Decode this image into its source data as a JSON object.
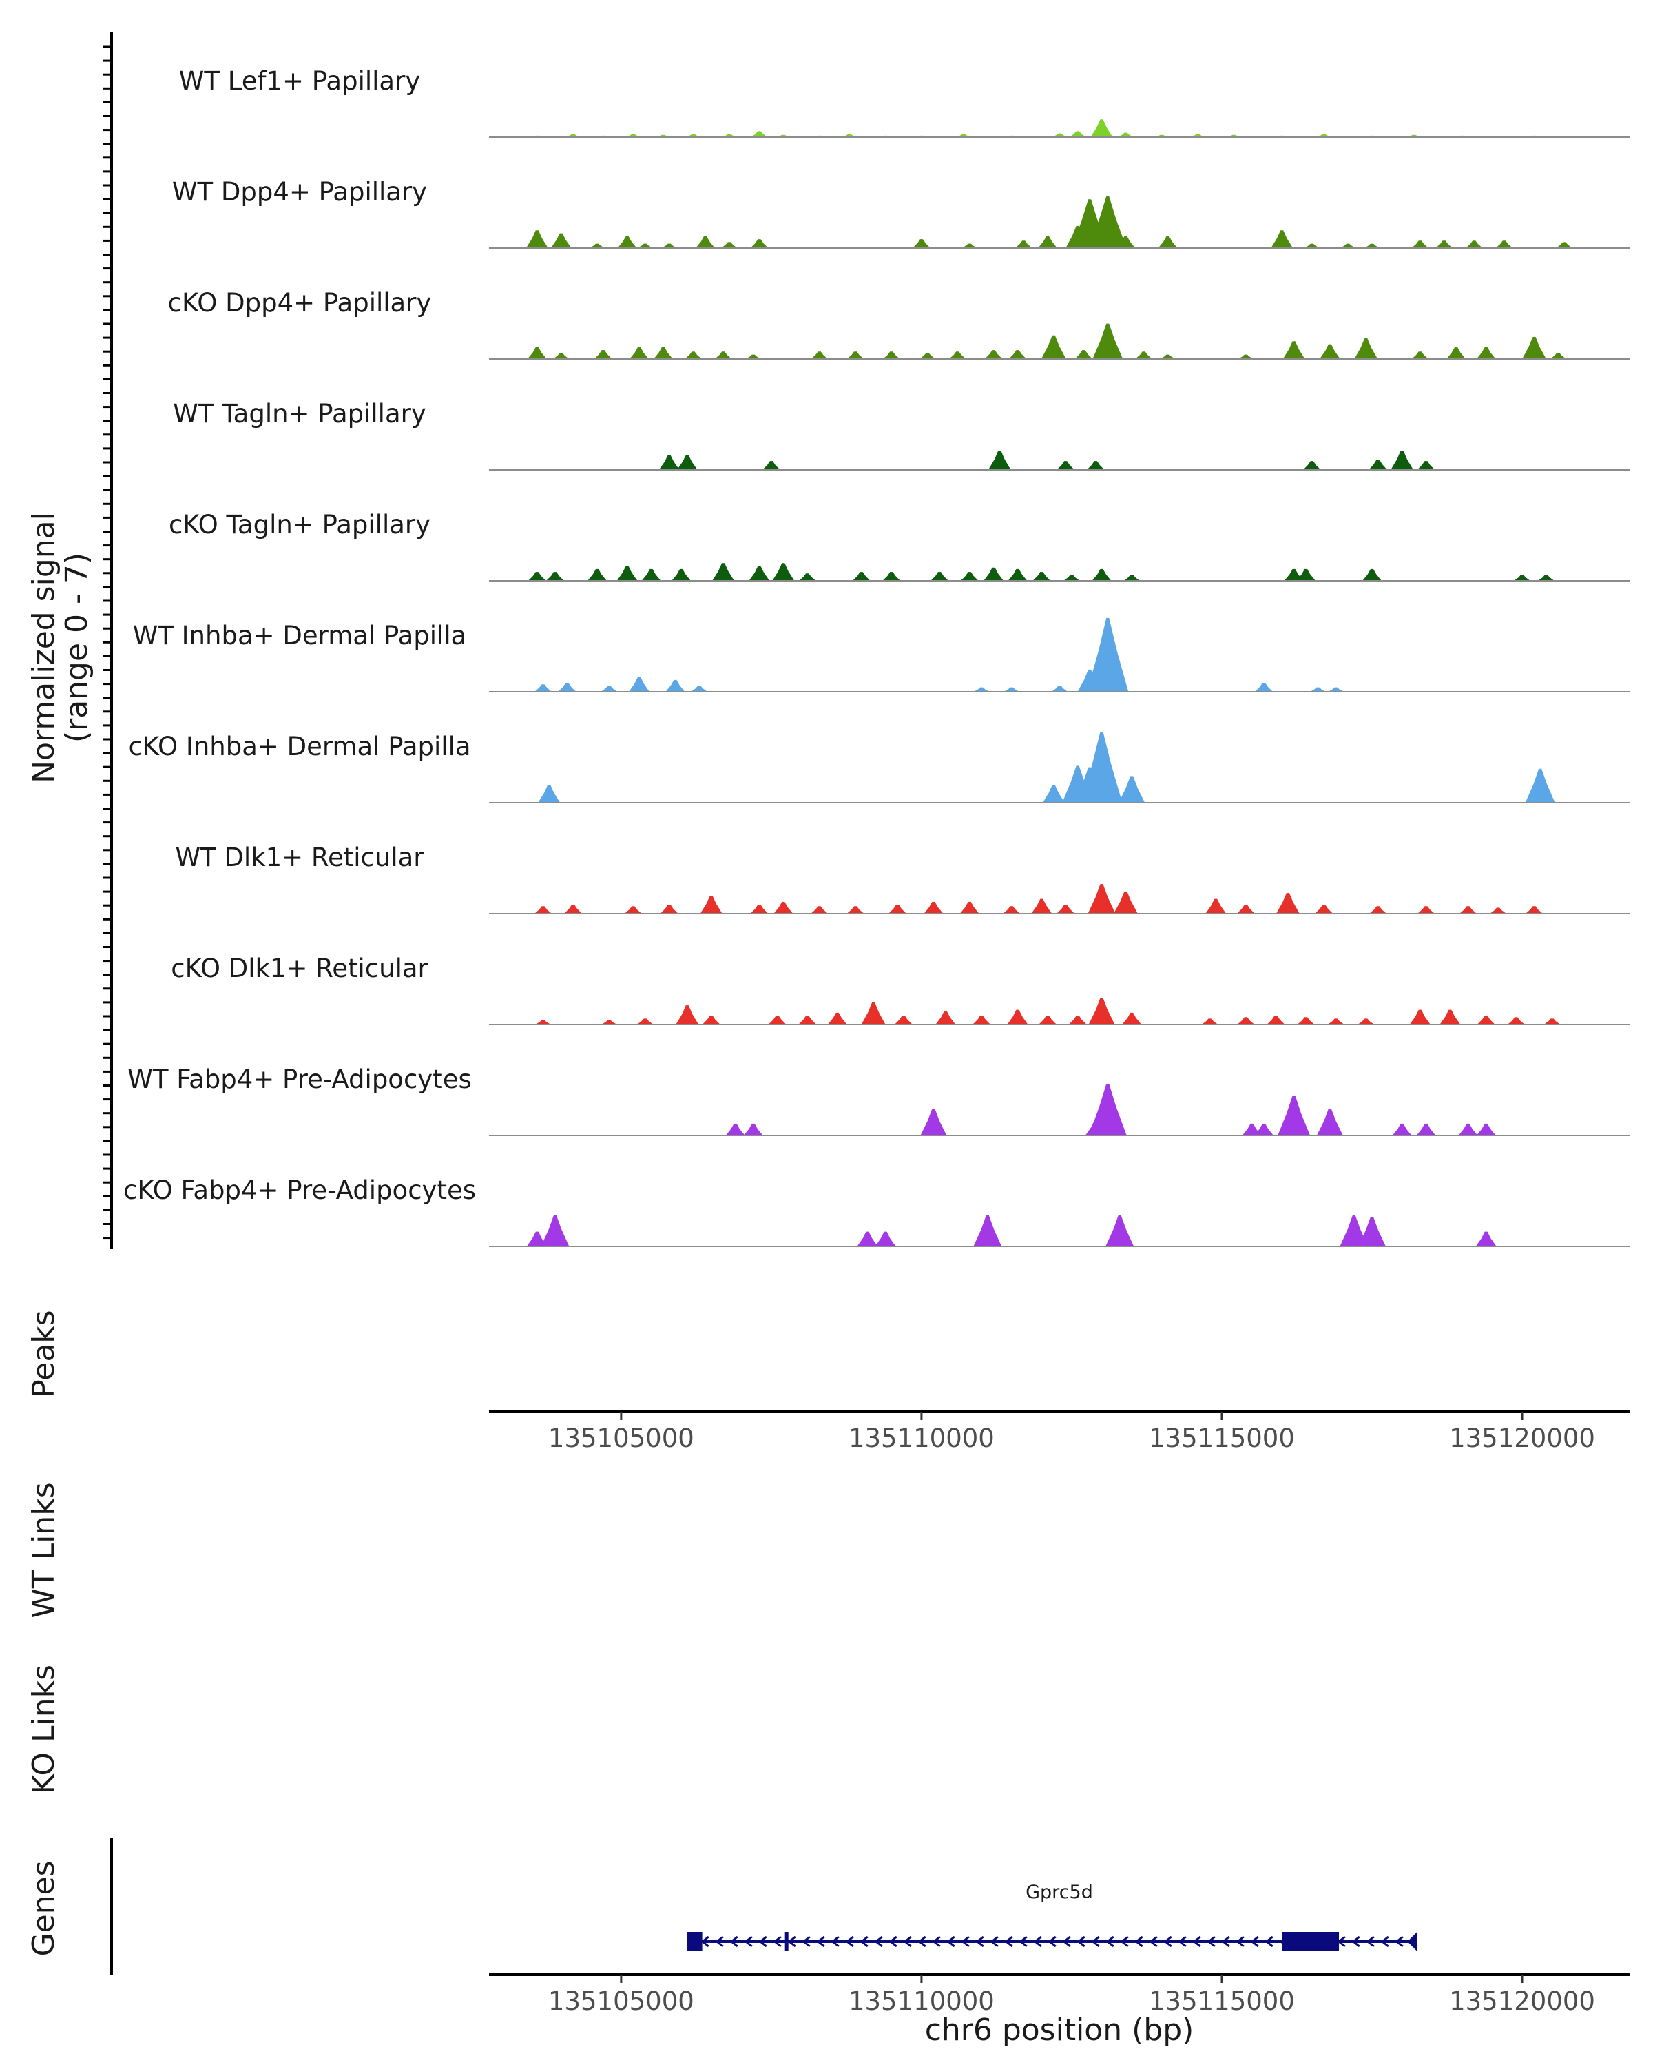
{
  "chart_data": {
    "type": "area",
    "title": "",
    "chromosome": "chr6",
    "xlabel": "chr6 position (bp)",
    "xlim": [
      135102800,
      135121800
    ],
    "xticks": [
      135105000,
      135110000,
      135115000,
      135120000
    ],
    "xtick_labels": [
      "135105000",
      "135110000",
      "135115000",
      "135120000"
    ],
    "ylabel": "Normalized signal",
    "ylabel_range": "(range 0 - 7)",
    "ylim": [
      0,
      7
    ],
    "series": [
      {
        "name": "WT Lef1+ Papillary",
        "color": "#7CD12A",
        "peaks": [
          [
            135103600,
            0.1
          ],
          [
            135104200,
            0.2
          ],
          [
            135104700,
            0.1
          ],
          [
            135105200,
            0.2
          ],
          [
            135105700,
            0.15
          ],
          [
            135106200,
            0.2
          ],
          [
            135106800,
            0.2
          ],
          [
            135107300,
            0.4
          ],
          [
            135107700,
            0.15
          ],
          [
            135108300,
            0.1
          ],
          [
            135108800,
            0.2
          ],
          [
            135109400,
            0.1
          ],
          [
            135110000,
            0.1
          ],
          [
            135110700,
            0.2
          ],
          [
            135111500,
            0.1
          ],
          [
            135112300,
            0.25
          ],
          [
            135112600,
            0.4
          ],
          [
            135113000,
            1.2
          ],
          [
            135113400,
            0.3
          ],
          [
            135114000,
            0.15
          ],
          [
            135114600,
            0.2
          ],
          [
            135115200,
            0.15
          ],
          [
            135116000,
            0.1
          ],
          [
            135116700,
            0.2
          ],
          [
            135117500,
            0.1
          ],
          [
            135118200,
            0.15
          ],
          [
            135119000,
            0.1
          ],
          [
            135120200,
            0.1
          ]
        ]
      },
      {
        "name": "WT Dpp4+ Papillary",
        "color": "#4E8A0C",
        "peaks": [
          [
            135103600,
            1.2
          ],
          [
            135104000,
            1.0
          ],
          [
            135104600,
            0.3
          ],
          [
            135105100,
            0.8
          ],
          [
            135105400,
            0.3
          ],
          [
            135105800,
            0.3
          ],
          [
            135106400,
            0.8
          ],
          [
            135106800,
            0.4
          ],
          [
            135107300,
            0.6
          ],
          [
            135110000,
            0.6
          ],
          [
            135110800,
            0.3
          ],
          [
            135111700,
            0.5
          ],
          [
            135112100,
            0.8
          ],
          [
            135112600,
            1.5
          ],
          [
            135112800,
            3.3
          ],
          [
            135113100,
            3.5
          ],
          [
            135113400,
            0.8
          ],
          [
            135114100,
            0.8
          ],
          [
            135116000,
            1.2
          ],
          [
            135116500,
            0.3
          ],
          [
            135117100,
            0.3
          ],
          [
            135117500,
            0.3
          ],
          [
            135118300,
            0.5
          ],
          [
            135118700,
            0.5
          ],
          [
            135119200,
            0.5
          ],
          [
            135119700,
            0.5
          ],
          [
            135120700,
            0.4
          ]
        ]
      },
      {
        "name": "cKO Dpp4+ Papillary",
        "color": "#4E8A0C",
        "peaks": [
          [
            135103600,
            0.8
          ],
          [
            135104000,
            0.4
          ],
          [
            135104700,
            0.6
          ],
          [
            135105300,
            0.8
          ],
          [
            135105700,
            0.8
          ],
          [
            135106200,
            0.5
          ],
          [
            135106700,
            0.5
          ],
          [
            135107200,
            0.3
          ],
          [
            135108300,
            0.5
          ],
          [
            135108900,
            0.5
          ],
          [
            135109500,
            0.5
          ],
          [
            135110100,
            0.4
          ],
          [
            135110600,
            0.5
          ],
          [
            135111200,
            0.6
          ],
          [
            135111600,
            0.6
          ],
          [
            135112200,
            1.6
          ],
          [
            135112700,
            0.6
          ],
          [
            135113100,
            2.4
          ],
          [
            135113700,
            0.5
          ],
          [
            135114100,
            0.3
          ],
          [
            135115400,
            0.3
          ],
          [
            135116200,
            1.2
          ],
          [
            135116800,
            1.0
          ],
          [
            135117400,
            1.4
          ],
          [
            135118300,
            0.5
          ],
          [
            135118900,
            0.8
          ],
          [
            135119400,
            0.8
          ],
          [
            135120200,
            1.5
          ],
          [
            135120600,
            0.4
          ]
        ]
      },
      {
        "name": "WT Tagln+ Papillary",
        "color": "#0E5C0E",
        "peaks": [
          [
            135105800,
            1.0
          ],
          [
            135106100,
            1.0
          ],
          [
            135107500,
            0.6
          ],
          [
            135111300,
            1.3
          ],
          [
            135112400,
            0.6
          ],
          [
            135112900,
            0.6
          ],
          [
            135116500,
            0.6
          ],
          [
            135117600,
            0.7
          ],
          [
            135118000,
            1.3
          ],
          [
            135118400,
            0.6
          ]
        ]
      },
      {
        "name": "cKO Tagln+ Papillary",
        "color": "#0E5C0E",
        "peaks": [
          [
            135103600,
            0.6
          ],
          [
            135103900,
            0.6
          ],
          [
            135104600,
            0.8
          ],
          [
            135105100,
            1.0
          ],
          [
            135105500,
            0.8
          ],
          [
            135106000,
            0.8
          ],
          [
            135106700,
            1.2
          ],
          [
            135107300,
            1.0
          ],
          [
            135107700,
            1.2
          ],
          [
            135108100,
            0.5
          ],
          [
            135109000,
            0.6
          ],
          [
            135109500,
            0.6
          ],
          [
            135110300,
            0.6
          ],
          [
            135110800,
            0.6
          ],
          [
            135111200,
            0.9
          ],
          [
            135111600,
            0.8
          ],
          [
            135112000,
            0.6
          ],
          [
            135112500,
            0.4
          ],
          [
            135113000,
            0.8
          ],
          [
            135113500,
            0.4
          ],
          [
            135116200,
            0.8
          ],
          [
            135116400,
            0.8
          ],
          [
            135117500,
            0.8
          ],
          [
            135120000,
            0.4
          ],
          [
            135120400,
            0.4
          ]
        ]
      },
      {
        "name": "WT Inhba+ Dermal Papilla",
        "color": "#5AA6E6",
        "peaks": [
          [
            135103700,
            0.5
          ],
          [
            135104100,
            0.6
          ],
          [
            135104800,
            0.4
          ],
          [
            135105300,
            1.0
          ],
          [
            135105900,
            0.8
          ],
          [
            135106300,
            0.4
          ],
          [
            135111000,
            0.3
          ],
          [
            135111500,
            0.3
          ],
          [
            135112300,
            0.4
          ],
          [
            135112800,
            1.5
          ],
          [
            135113100,
            5.0
          ],
          [
            135113300,
            0.6
          ],
          [
            135115700,
            0.6
          ],
          [
            135116600,
            0.3
          ],
          [
            135116900,
            0.3
          ]
        ]
      },
      {
        "name": "cKO Inhba+ Dermal Papilla",
        "color": "#5AA6E6",
        "peaks": [
          [
            135103800,
            1.2
          ],
          [
            135112200,
            1.2
          ],
          [
            135112600,
            2.5
          ],
          [
            135112800,
            2.4
          ],
          [
            135113000,
            4.8
          ],
          [
            135113200,
            1.0
          ],
          [
            135113500,
            1.8
          ],
          [
            135120300,
            2.3
          ]
        ]
      },
      {
        "name": "WT Dlk1+ Reticular",
        "color": "#E8302B",
        "peaks": [
          [
            135103700,
            0.5
          ],
          [
            135104200,
            0.6
          ],
          [
            135105200,
            0.5
          ],
          [
            135105800,
            0.6
          ],
          [
            135106500,
            1.2
          ],
          [
            135107300,
            0.6
          ],
          [
            135107700,
            0.8
          ],
          [
            135108300,
            0.5
          ],
          [
            135108900,
            0.5
          ],
          [
            135109600,
            0.6
          ],
          [
            135110200,
            0.8
          ],
          [
            135110800,
            0.8
          ],
          [
            135111500,
            0.5
          ],
          [
            135112000,
            1.0
          ],
          [
            135112400,
            0.6
          ],
          [
            135113000,
            2.0
          ],
          [
            135113400,
            1.5
          ],
          [
            135114900,
            1.0
          ],
          [
            135115400,
            0.6
          ],
          [
            135116100,
            1.4
          ],
          [
            135116700,
            0.6
          ],
          [
            135117600,
            0.5
          ],
          [
            135118400,
            0.5
          ],
          [
            135119100,
            0.5
          ],
          [
            135119600,
            0.4
          ],
          [
            135120200,
            0.5
          ]
        ]
      },
      {
        "name": "cKO Dlk1+ Reticular",
        "color": "#E8302B",
        "peaks": [
          [
            135103700,
            0.3
          ],
          [
            135104800,
            0.3
          ],
          [
            135105400,
            0.4
          ],
          [
            135106100,
            1.3
          ],
          [
            135106500,
            0.6
          ],
          [
            135107600,
            0.6
          ],
          [
            135108100,
            0.6
          ],
          [
            135108600,
            0.8
          ],
          [
            135109200,
            1.5
          ],
          [
            135109700,
            0.6
          ],
          [
            135110400,
            0.9
          ],
          [
            135111000,
            0.6
          ],
          [
            135111600,
            1.0
          ],
          [
            135112100,
            0.6
          ],
          [
            135112600,
            0.6
          ],
          [
            135113000,
            1.8
          ],
          [
            135113500,
            0.8
          ],
          [
            135114800,
            0.4
          ],
          [
            135115400,
            0.5
          ],
          [
            135115900,
            0.6
          ],
          [
            135116400,
            0.5
          ],
          [
            135116900,
            0.4
          ],
          [
            135117400,
            0.4
          ],
          [
            135118300,
            1.0
          ],
          [
            135118800,
            1.0
          ],
          [
            135119400,
            0.6
          ],
          [
            135119900,
            0.5
          ],
          [
            135120500,
            0.4
          ]
        ]
      },
      {
        "name": "WT Fabp4+ Pre-Adipocytes",
        "color": "#A338E6",
        "peaks": [
          [
            135106900,
            0.8
          ],
          [
            135107200,
            0.8
          ],
          [
            135110200,
            1.8
          ],
          [
            135112900,
            1.0
          ],
          [
            135113100,
            3.5
          ],
          [
            135115500,
            0.8
          ],
          [
            135115700,
            0.8
          ],
          [
            135116200,
            2.7
          ],
          [
            135116800,
            1.8
          ],
          [
            135118000,
            0.8
          ],
          [
            135118400,
            0.8
          ],
          [
            135119100,
            0.8
          ],
          [
            135119400,
            0.8
          ]
        ]
      },
      {
        "name": "cKO Fabp4+ Pre-Adipocytes",
        "color": "#A338E6",
        "peaks": [
          [
            135103600,
            1.0
          ],
          [
            135103900,
            2.1
          ],
          [
            135109100,
            1.0
          ],
          [
            135109400,
            1.0
          ],
          [
            135111100,
            2.1
          ],
          [
            135113300,
            2.1
          ],
          [
            135117200,
            2.1
          ],
          [
            135117500,
            2.0
          ],
          [
            135119400,
            1.0
          ]
        ]
      }
    ],
    "peaks_track_label": "Peaks",
    "link_tracks": [
      "WT Links",
      "KO Links"
    ],
    "genes_track_label": "Genes",
    "gene": {
      "name": "Gprc5d",
      "start": 135106100,
      "end": 135118250,
      "strand": "-",
      "color": "#0A0A7C",
      "cds": [
        [
          135106100,
          135106350
        ],
        [
          135116000,
          135116950
        ]
      ],
      "exon_marks": [
        135107750
      ]
    }
  }
}
